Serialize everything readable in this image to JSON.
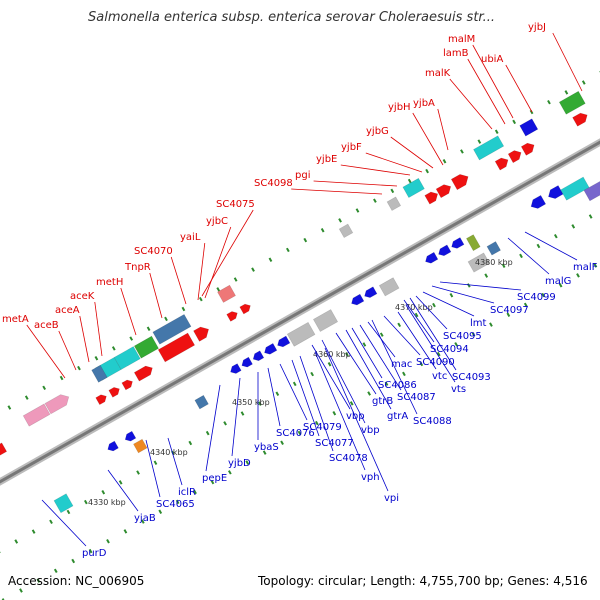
{
  "header": {
    "title": "Salmonella enterica subsp. enterica serovar Choleraesuis str..."
  },
  "footer": {
    "accession": "Accession: NC_006905",
    "summary": "Topology: circular; Length: 4,755,700 bp; Genes: 4,516"
  },
  "colors": {
    "forward_label": "#dd0000",
    "reverse_label": "#0000cc",
    "backbone": "#8a8a8a",
    "tick_mark": "#2e8b2e",
    "red": "#ee1111",
    "blue": "#1111dd",
    "cyan": "#22cccc",
    "steelblue": "#4477aa",
    "green": "#33aa33",
    "pink": "#ee99bb",
    "gray": "#bbbbbb",
    "orange": "#ee8822",
    "olive": "#88aa33",
    "purple": "#7766cc",
    "salmon": "#ee7777"
  },
  "ticks": [
    "4330 kbp",
    "4340 kbp",
    "4350 kbp",
    "4360 kbp",
    "4370 kbp",
    "4380 kbp"
  ],
  "forward_genes": [
    "metA",
    "aceB",
    "aceA",
    "aceK",
    "metH",
    "TnpR",
    "SC4070",
    "yaiL",
    "yjbC",
    "SC4075",
    "SC4098",
    "pgi",
    "yjbE",
    "yjbF",
    "yjbG",
    "yjbH",
    "yjbA",
    "malK",
    "lamB",
    "malM",
    "ubiA",
    "yjbJ"
  ],
  "reverse_genes": [
    "purD",
    "yjaB",
    "SC4065",
    "iclR",
    "pepE",
    "yjbD",
    "ybaS",
    "SC4076",
    "SC4079",
    "SC4077",
    "SC4078",
    "vph",
    "vpi",
    "vbp",
    "vbp",
    "gtrB",
    "gtrA",
    "SC4086",
    "SC4087",
    "SC4088",
    "mac",
    "SC4090",
    "vtc",
    "vts",
    "SC4094",
    "SC4093",
    "SC4095",
    "lmt",
    "SC4097",
    "SC4099",
    "malG",
    "malF"
  ]
}
